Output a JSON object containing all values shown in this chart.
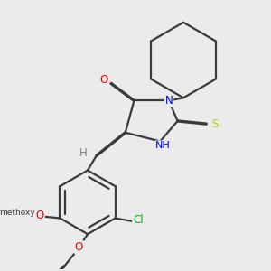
{
  "bg_color": "#ebebeb",
  "bond_color": "#3a3a3a",
  "bond_width": 1.6,
  "atom_colors": {
    "O": "#ff0000",
    "N": "#0000ee",
    "S": "#cccc00",
    "Cl": "#00aa00",
    "H": "#708090",
    "C": "#3a3a3a"
  },
  "font_size": 8.5
}
